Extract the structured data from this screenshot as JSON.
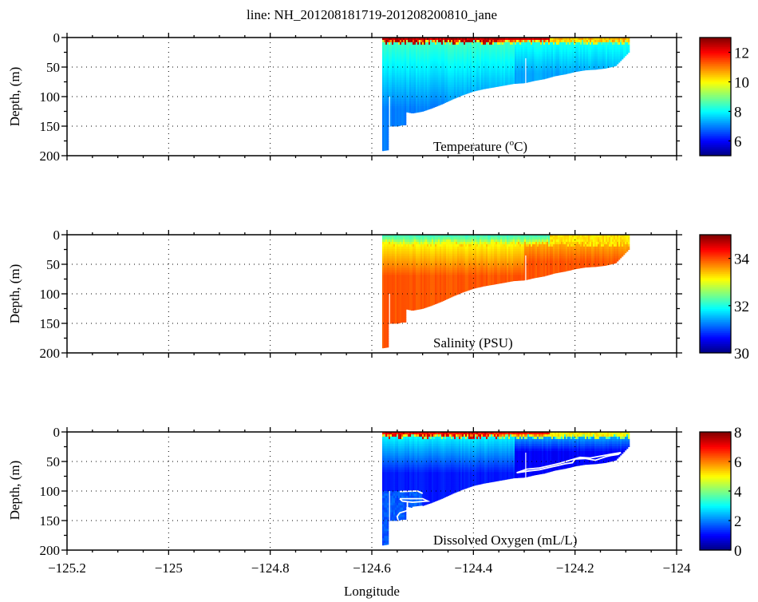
{
  "chart_data": [
    {
      "type": "heatmap",
      "title": "line: NH_201208181719-201208200810_jane",
      "panel_label": "Temperature (",
      "panel_label_unit_sup": "o",
      "panel_label_unit": "C)",
      "xlabel": "",
      "ylabel": "Depth, (m)",
      "xlim": [
        -125.2,
        -124
      ],
      "ylim": [
        0,
        200
      ],
      "y_reversed": true,
      "yticks": [
        "0",
        "50",
        "100",
        "150",
        "200"
      ],
      "grid": true,
      "colormap": "jet",
      "clim": [
        5,
        13
      ],
      "colorbar_ticks": [
        "6",
        "8",
        "10",
        "12"
      ],
      "colorbar_tick_values": [
        6,
        8,
        10,
        12
      ],
      "surface_value": 12.5,
      "bottom_value": 7.0,
      "mid_value": 8.2
    },
    {
      "type": "heatmap",
      "panel_label": "Salinity (PSU)",
      "xlabel": "",
      "ylabel": "Depth, (m)",
      "xlim": [
        -125.2,
        -124
      ],
      "ylim": [
        0,
        200
      ],
      "y_reversed": true,
      "yticks": [
        "0",
        "50",
        "100",
        "150",
        "200"
      ],
      "grid": true,
      "colormap": "jet",
      "clim": [
        30,
        35
      ],
      "colorbar_ticks": [
        "30",
        "32",
        "34"
      ],
      "colorbar_tick_values": [
        30,
        32,
        34
      ],
      "surface_value": 32.2,
      "bottom_value": 33.95,
      "mid_value": 33.4
    },
    {
      "type": "heatmap",
      "panel_label": "Dissolved Oxygen (mL/L)",
      "xlabel": "Longitude",
      "ylabel": "Depth, (m)",
      "xlim": [
        -125.2,
        -124
      ],
      "ylim": [
        0,
        200
      ],
      "y_reversed": true,
      "xticks": [
        "−125.2",
        "−125",
        "−124.8",
        "−124.6",
        "−124.4",
        "−124.2",
        "−124"
      ],
      "xtick_values": [
        -125.2,
        -125,
        -124.8,
        -124.6,
        -124.4,
        -124.2,
        -124
      ],
      "yticks": [
        "0",
        "50",
        "100",
        "150",
        "200"
      ],
      "grid": true,
      "colormap": "jet",
      "clim": [
        0,
        8
      ],
      "colorbar_ticks": [
        "0",
        "2",
        "4",
        "6",
        "8"
      ],
      "colorbar_tick_values": [
        0,
        2,
        4,
        6,
        8
      ],
      "surface_value": 7.0,
      "bottom_value": 1.4,
      "mid_value": 2.8,
      "contour_level": 1.4,
      "contours": [
        [
          [
            -124.315,
            69
          ],
          [
            -124.29,
            66
          ],
          [
            -124.27,
            64
          ],
          [
            -124.25,
            60
          ],
          [
            -124.235,
            57
          ],
          [
            -124.22,
            54
          ],
          [
            -124.205,
            52
          ],
          [
            -124.2,
            46
          ],
          [
            -124.18,
            45
          ],
          [
            -124.16,
            48
          ],
          [
            -124.15,
            45
          ],
          [
            -124.14,
            42
          ],
          [
            -124.13,
            40
          ],
          [
            -124.115,
            38
          ],
          [
            -124.11,
            35
          ],
          [
            -124.125,
            37
          ],
          [
            -124.15,
            41
          ],
          [
            -124.17,
            44
          ],
          [
            -124.19,
            43
          ],
          [
            -124.21,
            48
          ],
          [
            -124.23,
            53
          ],
          [
            -124.25,
            57
          ],
          [
            -124.27,
            61
          ],
          [
            -124.295,
            63
          ],
          [
            -124.315,
            69
          ]
        ],
        [
          [
            -124.545,
            101
          ],
          [
            -124.51,
            100
          ],
          [
            -124.5,
            104
          ]
        ],
        [
          [
            -124.545,
            113
          ],
          [
            -124.5,
            113
          ],
          [
            -124.49,
            117
          ],
          [
            -124.52,
            119
          ],
          [
            -124.54,
            117
          ],
          [
            -124.545,
            113
          ]
        ],
        [
          [
            -124.53,
            119
          ],
          [
            -124.53,
            133
          ],
          [
            -124.545,
            137
          ],
          [
            -124.55,
            143
          ],
          [
            -124.548,
            150
          ]
        ],
        [
          [
            -124.52,
            128
          ],
          [
            -124.5,
            126
          ]
        ]
      ]
    }
  ],
  "section": {
    "lon_start": -124.58,
    "lon_end": -124.093,
    "bottom_profile": [
      [
        -124.58,
        192
      ],
      [
        -124.566,
        190
      ],
      [
        -124.5655,
        150
      ],
      [
        -124.548,
        150
      ],
      [
        -124.54,
        148
      ],
      [
        -124.532,
        148
      ],
      [
        -124.5315,
        126
      ],
      [
        -124.52,
        128
      ],
      [
        -124.5,
        125
      ],
      [
        -124.48,
        119
      ],
      [
        -124.46,
        112
      ],
      [
        -124.44,
        104
      ],
      [
        -124.42,
        97
      ],
      [
        -124.4,
        91
      ],
      [
        -124.38,
        87
      ],
      [
        -124.36,
        84
      ],
      [
        -124.34,
        81
      ],
      [
        -124.32,
        78
      ],
      [
        -124.3,
        77
      ],
      [
        -124.28,
        73
      ],
      [
        -124.26,
        70
      ],
      [
        -124.24,
        65
      ],
      [
        -124.22,
        62
      ],
      [
        -124.2,
        58
      ],
      [
        -124.18,
        55
      ],
      [
        -124.16,
        54
      ],
      [
        -124.14,
        52
      ],
      [
        -124.12,
        48
      ],
      [
        -124.105,
        35
      ],
      [
        -124.093,
        24
      ]
    ]
  }
}
